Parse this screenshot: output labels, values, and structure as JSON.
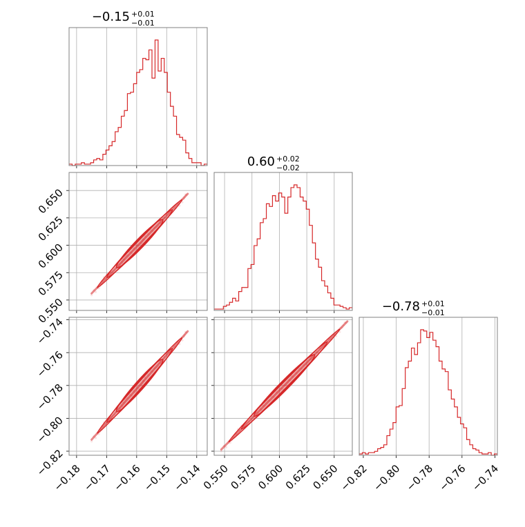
{
  "chart_data": {
    "type": "corner",
    "parameters": [
      {
        "range": [
          -0.1825,
          -0.1365
        ],
        "ticks": [
          -0.18,
          -0.17,
          -0.16,
          -0.15,
          -0.14
        ],
        "tick_labels": [
          "−0.18",
          "−0.17",
          "−0.16",
          "−0.15",
          "−0.14"
        ]
      },
      {
        "range": [
          0.5405,
          0.6665
        ],
        "ticks": [
          0.55,
          0.575,
          0.6,
          0.625,
          0.65
        ],
        "tick_labels": [
          "0.550",
          "0.575",
          "0.600",
          "0.625",
          "0.650"
        ]
      },
      {
        "range": [
          -0.8225,
          -0.7385
        ],
        "ticks": [
          -0.82,
          -0.8,
          -0.78,
          -0.76,
          -0.74
        ],
        "tick_labels": [
          "−0.82",
          "−0.80",
          "−0.78",
          "−0.76",
          "−0.74"
        ]
      }
    ],
    "titles": [
      {
        "value": "−0.15",
        "plus": "+0.01",
        "minus": "−0.01"
      },
      {
        "value": "0.60",
        "plus": "+0.02",
        "minus": "−0.02"
      },
      {
        "value": "−0.78",
        "plus": "+0.01",
        "minus": "−0.01"
      }
    ],
    "histograms": [
      {
        "counts": [
          1,
          0,
          1,
          1,
          2,
          1,
          1,
          2,
          4,
          5,
          4,
          8,
          11,
          14,
          17,
          24,
          27,
          35,
          39,
          51,
          52,
          58,
          66,
          68,
          76,
          75,
          82,
          62,
          89,
          67,
          76,
          66,
          52,
          42,
          35,
          22,
          20,
          18,
          9,
          5,
          2,
          2,
          2,
          0,
          1
        ]
      },
      {
        "counts": [
          1,
          1,
          1,
          3,
          4,
          6,
          9,
          7,
          14,
          17,
          17,
          31,
          34,
          48,
          53,
          65,
          68,
          79,
          77,
          85,
          81,
          87,
          84,
          72,
          84,
          91,
          93,
          91,
          84,
          81,
          75,
          63,
          50,
          38,
          32,
          22,
          18,
          13,
          9,
          4,
          4,
          3,
          2,
          1,
          2
        ]
      },
      {
        "counts": [
          1,
          2,
          1,
          2,
          2,
          3,
          5,
          6,
          8,
          15,
          20,
          25,
          37,
          38,
          51,
          67,
          72,
          82,
          77,
          86,
          96,
          95,
          90,
          94,
          88,
          83,
          72,
          66,
          64,
          50,
          43,
          37,
          29,
          24,
          21,
          12,
          8,
          5,
          4,
          2,
          1,
          1,
          2,
          0,
          1
        ]
      }
    ],
    "correlation_lines": {
      "p1_vs_p0": {
        "x": [
          -0.175,
          -0.143
        ],
        "y": [
          0.556,
          0.647
        ]
      },
      "p2_vs_p0": {
        "x": [
          -0.175,
          -0.143
        ],
        "y": [
          -0.813,
          -0.747
        ]
      },
      "p2_vs_p1": {
        "x": [
          0.547,
          0.662
        ],
        "y": [
          -0.819,
          -0.741
        ]
      }
    },
    "colors": {
      "series": "#d62728",
      "grid": "#b0b0b0",
      "axis": "#808080"
    },
    "grid": true
  }
}
